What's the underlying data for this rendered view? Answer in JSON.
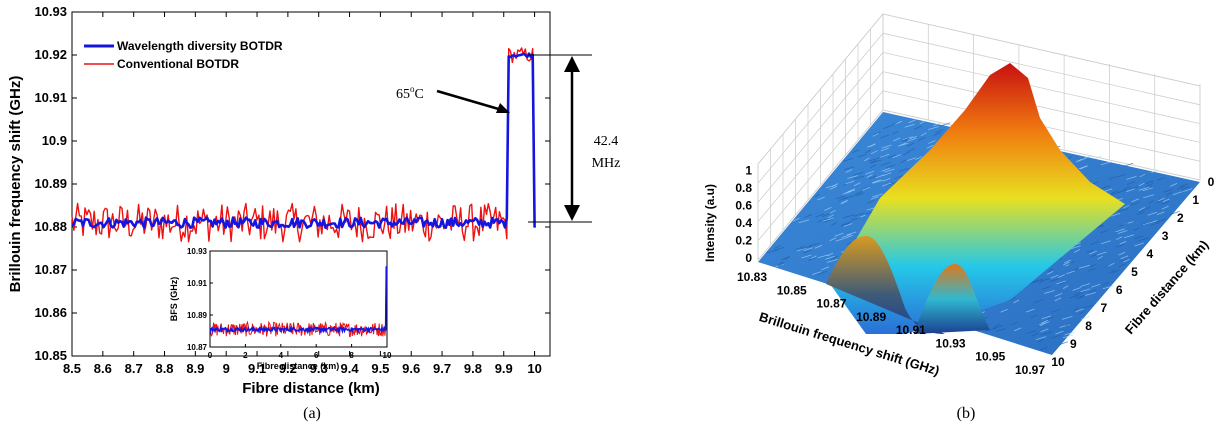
{
  "chart_data": [
    {
      "type": "line",
      "panel_label": "(a)",
      "xlabel": "Fibre distance (km)",
      "ylabel": "Brillouin frequency shift (GHz)",
      "xlim": [
        8.5,
        10.05
      ],
      "ylim": [
        10.85,
        10.93
      ],
      "xticks": [
        "8.5",
        "8.6",
        "8.7",
        "8.8",
        "8.9",
        "9",
        "9.1",
        "9.2",
        "9.3",
        "9.4",
        "9.5",
        "9.6",
        "9.7",
        "9.8",
        "9.9",
        "10"
      ],
      "yticks": [
        "10.85",
        "10.86",
        "10.87",
        "10.88",
        "10.89",
        "10.9",
        "10.91",
        "10.92",
        "10.93"
      ],
      "legend_position": "top-left",
      "series": [
        {
          "name": "Wavelength diversity BOTDR",
          "color": "#1515e0",
          "baseline": 10.881,
          "noise": 0.0012,
          "hot_level": 10.92,
          "hot_start": 9.915,
          "hot_end": 9.995
        },
        {
          "name": "Conventional BOTDR",
          "color": "#ee1111",
          "baseline": 10.881,
          "noise": 0.0045,
          "hot_level": 10.92,
          "hot_start": 9.915,
          "hot_end": 9.995
        }
      ],
      "annotations": {
        "temperature": {
          "value": "65",
          "sup": "o",
          "unit": "C"
        },
        "delta_value": "42.4",
        "delta_unit": "MHz"
      },
      "inset": {
        "xlabel": "Fibre distance (km)",
        "ylabel": "BFS (GHz)",
        "xlim": [
          0,
          10
        ],
        "ylim": [
          10.87,
          10.93
        ],
        "xticks": [
          "0",
          "2",
          "4",
          "6",
          "8",
          "10"
        ],
        "yticks": [
          "10.87",
          "10.89",
          "10.91",
          "10.93"
        ]
      }
    },
    {
      "type": "surface3d",
      "panel_label": "(b)",
      "xlabel": "Brillouin frequency shift (GHz)",
      "ylabel": "Fibre distance (km)",
      "zlabel": "Intensity (a.u)",
      "xticks": [
        "10.83",
        "10.85",
        "10.87",
        "10.89",
        "10.91",
        "10.93",
        "10.95",
        "10.97"
      ],
      "yticks": [
        "0",
        "1",
        "2",
        "3",
        "4",
        "5",
        "6",
        "7",
        "8",
        "9",
        "10"
      ],
      "zticks": [
        "0",
        "0.2",
        "0.4",
        "0.6",
        "0.8",
        "1"
      ],
      "peaks": [
        {
          "center_ghz": 10.881,
          "height": 1.0,
          "description": "ridge along fibre"
        },
        {
          "center_ghz": 10.92,
          "height": 0.72,
          "description": "hot section near 10 km"
        }
      ],
      "colormap": "jet"
    }
  ]
}
